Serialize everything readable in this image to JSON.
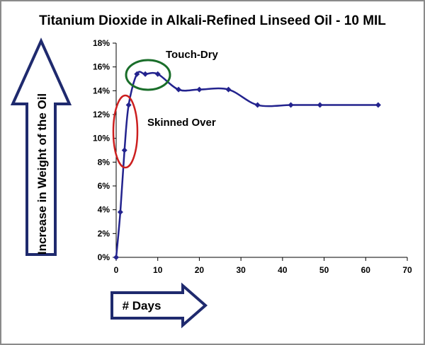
{
  "chart_data": {
    "type": "line",
    "title": "Titanium Dioxide in Alkali-Refined Linseed Oil - 10 MIL",
    "xlabel": "# Days",
    "ylabel": "Increase in Weight of the Oil",
    "xlim": [
      0,
      70
    ],
    "ylim": [
      0,
      0.18
    ],
    "x_ticks": [
      "0",
      "10",
      "20",
      "30",
      "40",
      "50",
      "60",
      "70"
    ],
    "y_ticks": [
      "0%",
      "2%",
      "4%",
      "6%",
      "8%",
      "10%",
      "12%",
      "14%",
      "16%",
      "18%"
    ],
    "grid": false,
    "series": [
      {
        "x": [
          0,
          1,
          2,
          3,
          5,
          7,
          10,
          15,
          20,
          27,
          34,
          42,
          49,
          63
        ],
        "y": [
          0.0,
          0.038,
          0.09,
          0.128,
          0.154,
          0.154,
          0.154,
          0.141,
          0.141,
          0.141,
          0.128,
          0.128,
          0.128,
          0.128
        ],
        "color": "#23238e"
      }
    ],
    "annotations": [
      {
        "text": "Touch-Dry",
        "color": "#1a6e2a"
      },
      {
        "text": "Skinned Over",
        "color": "#cc1f1f"
      }
    ]
  }
}
